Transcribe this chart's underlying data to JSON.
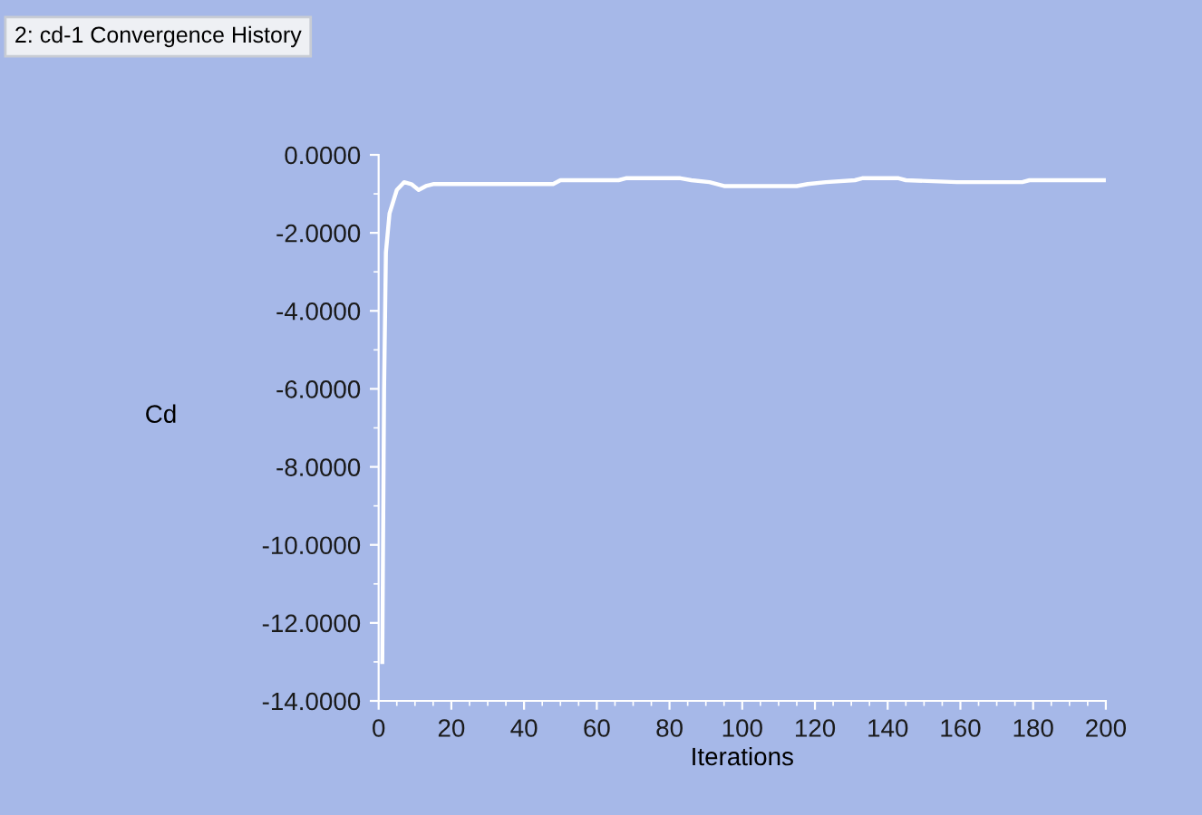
{
  "chart_data": {
    "type": "line",
    "title": "2: cd-1 Convergence History",
    "xlabel": "Iterations",
    "ylabel": "Cd",
    "x": [
      1,
      1.5,
      2,
      3,
      5,
      7,
      9,
      11,
      13,
      15,
      48,
      50,
      66,
      68,
      83,
      86,
      91,
      95,
      115,
      118,
      123,
      131,
      133,
      143,
      145,
      159,
      177,
      179,
      200
    ],
    "series": [
      {
        "color": "#ffffff",
        "values": [
          -13.0,
          -6.0,
          -2.5,
          -1.5,
          -0.9,
          -0.7,
          -0.75,
          -0.9,
          -0.8,
          -0.75,
          -0.75,
          -0.65,
          -0.65,
          -0.6,
          -0.6,
          -0.65,
          -0.7,
          -0.8,
          -0.8,
          -0.75,
          -0.7,
          -0.65,
          -0.6,
          -0.6,
          -0.65,
          -0.7,
          -0.7,
          -0.65,
          -0.65
        ]
      }
    ],
    "xlim": [
      0,
      200
    ],
    "ylim": [
      -14,
      0
    ],
    "xticks": [
      0,
      20,
      40,
      60,
      80,
      100,
      120,
      140,
      160,
      180,
      200
    ],
    "yticks": [
      {
        "value": 0,
        "label": "0.0000"
      },
      {
        "value": -2,
        "label": "-2.0000"
      },
      {
        "value": -4,
        "label": "-4.0000"
      },
      {
        "value": -6,
        "label": "-6.0000"
      },
      {
        "value": -8,
        "label": "-8.0000"
      },
      {
        "value": -10,
        "label": "-10.0000"
      },
      {
        "value": -12,
        "label": "-12.0000"
      },
      {
        "value": -14,
        "label": "-14.0000"
      }
    ],
    "grid": false,
    "legend": false,
    "marker": "none",
    "line_style": "solid"
  }
}
